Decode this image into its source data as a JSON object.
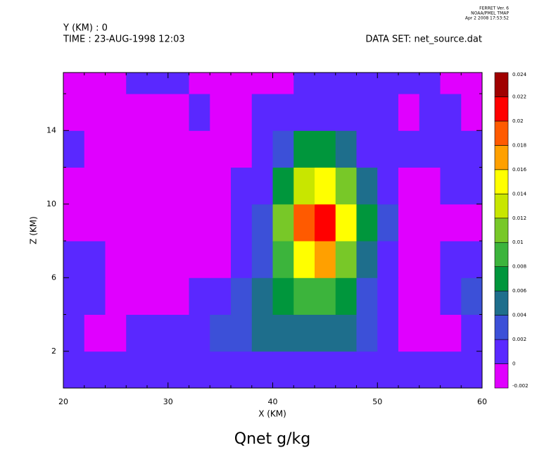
{
  "chart_data": {
    "type": "contour",
    "title": "Qnet g/kg",
    "header": [
      "Y (KM) : 0",
      "TIME : 23-AUG-1998 12:03"
    ],
    "dataset": "DATA SET: net_source.dat",
    "stamp": [
      "FERRET Ver. 6",
      "NOAA/PMEL TMAP",
      "Apr  2 2008 17:53:52"
    ],
    "x_label": "X (KM)",
    "y_label": "Z (KM)",
    "xlim": [
      20,
      60
    ],
    "xticks": [
      20,
      30,
      40,
      50,
      60
    ],
    "xminor": [
      22,
      24,
      26,
      28,
      32,
      34,
      36,
      38,
      42,
      44,
      46,
      48,
      52,
      54,
      56,
      58
    ],
    "ylim": [
      0,
      17.15
    ],
    "yticks": [
      2,
      6,
      10,
      14
    ],
    "yminor": [
      4,
      8,
      12,
      16
    ],
    "x": [
      21,
      23,
      25,
      27,
      29,
      31,
      33,
      35,
      37,
      39,
      41,
      43,
      45,
      47,
      49,
      51,
      53,
      55,
      57,
      59
    ],
    "y": [
      1,
      3,
      5,
      7,
      9,
      11,
      13,
      15,
      17
    ],
    "z": [
      [
        0.001,
        0.001,
        0.001,
        0.001,
        0.001,
        0.001,
        0.001,
        0.001,
        0.001,
        0.001,
        0.001,
        0.001,
        0.001,
        0.001,
        0.001,
        0.001,
        0.001,
        0.001,
        0.001,
        0.001
      ],
      [
        0.001,
        -0.001,
        -0.001,
        0.001,
        0.001,
        0.001,
        0.001,
        0.003,
        0.003,
        0.005,
        0.005,
        0.005,
        0.005,
        0.005,
        0.003,
        0.001,
        -0.001,
        -0.001,
        -0.001,
        0.001
      ],
      [
        0.001,
        0.001,
        -0.001,
        -0.001,
        -0.001,
        -0.001,
        0.001,
        0.001,
        0.003,
        0.005,
        0.007,
        0.009,
        0.009,
        0.007,
        0.003,
        0.001,
        -0.001,
        -0.001,
        0.001,
        0.003
      ],
      [
        0.001,
        0.001,
        -0.001,
        -0.001,
        -0.001,
        -0.001,
        -0.001,
        -0.001,
        0.001,
        0.003,
        0.009,
        0.015,
        0.017,
        0.011,
        0.005,
        0.001,
        -0.001,
        -0.001,
        0.001,
        0.001
      ],
      [
        -0.001,
        -0.001,
        -0.001,
        -0.001,
        -0.001,
        -0.001,
        -0.001,
        -0.001,
        0.001,
        0.003,
        0.011,
        0.019,
        0.021,
        0.015,
        0.007,
        0.003,
        -0.001,
        -0.001,
        -0.001,
        -0.001
      ],
      [
        -0.001,
        -0.001,
        -0.001,
        -0.001,
        -0.001,
        -0.001,
        -0.001,
        -0.001,
        0.001,
        0.001,
        0.007,
        0.013,
        0.015,
        0.011,
        0.005,
        0.001,
        -0.001,
        -0.001,
        0.001,
        0.001
      ],
      [
        0.001,
        -0.001,
        -0.001,
        -0.001,
        -0.001,
        -0.001,
        -0.001,
        -0.001,
        -0.001,
        0.001,
        0.003,
        0.007,
        0.007,
        0.005,
        0.001,
        0.001,
        0.001,
        0.001,
        0.001,
        0.001
      ],
      [
        -0.001,
        -0.001,
        -0.001,
        -0.001,
        -0.001,
        -0.001,
        0.001,
        -0.001,
        -0.001,
        0.001,
        0.001,
        0.001,
        0.001,
        0.001,
        0.001,
        0.001,
        -0.001,
        0.001,
        0.001,
        -0.001
      ],
      [
        -0.001,
        -0.001,
        -0.001,
        0.001,
        0.001,
        0.001,
        -0.001,
        -0.001,
        -0.001,
        -0.001,
        -0.001,
        0.001,
        0.001,
        0.001,
        0.001,
        0.001,
        0.001,
        0.001,
        -0.001,
        -0.001
      ]
    ],
    "levels": [
      -0.002,
      0,
      0.002,
      0.004,
      0.006,
      0.008,
      0.01,
      0.012,
      0.014,
      0.016,
      0.018,
      0.02,
      0.022,
      0.024
    ],
    "colors": [
      "#e000ff",
      "#5a28ff",
      "#3c50d8",
      "#1e6e8c",
      "#00963c",
      "#3cb43c",
      "#78c828",
      "#c8e600",
      "#ffff00",
      "#ffa000",
      "#ff5a00",
      "#ff0000",
      "#a00000"
    ]
  }
}
